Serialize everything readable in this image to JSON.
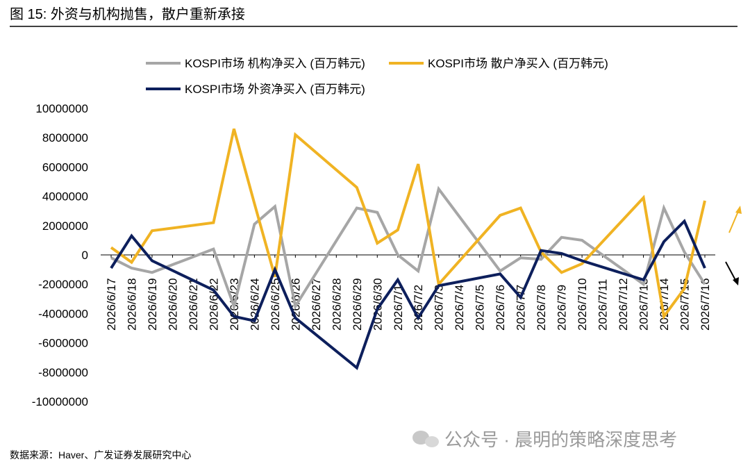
{
  "chart_data": {
    "type": "line",
    "title": "图 15: 外资与机构抛售，散户重新承接",
    "source": "数据来源：Haver、广发证券发展研究中心",
    "watermark": "公众号 · 晨明的策略深度思考",
    "x": [
      "2026/6/17",
      "2026/6/18",
      "2026/6/19",
      "2026/6/22",
      "2026/6/23",
      "2026/6/24",
      "2026/6/25",
      "2026/6/26",
      "2026/6/29",
      "2026/6/30",
      "2026/7/1",
      "2026/7/2",
      "2026/7/3",
      "2026/7/6",
      "2026/7/7",
      "2026/7/8",
      "2026/7/9",
      "2026/7/10",
      "2026/7/13",
      "2026/7/14",
      "2026/7/15",
      "2026/7/16"
    ],
    "xlim": [
      "2026/6/17",
      "2026/7/16"
    ],
    "xticks": [
      "2026/6/17",
      "2026/6/18",
      "2026/6/19",
      "2026/6/20",
      "2026/6/21",
      "2026/6/22",
      "2026/6/23",
      "2026/6/24",
      "2026/6/25",
      "2026/6/26",
      "2026/6/27",
      "2026/6/28",
      "2026/6/29",
      "2026/6/30",
      "2026/7/1",
      "2026/7/2",
      "2026/7/3",
      "2026/7/4",
      "2026/7/5",
      "2026/7/6",
      "2026/7/7",
      "2026/7/8",
      "2026/7/9",
      "2026/7/10",
      "2026/7/11",
      "2026/7/12",
      "2026/7/13",
      "2026/7/14",
      "2026/7/15",
      "2026/7/16"
    ],
    "ylim": [
      -10000000,
      10000000
    ],
    "yticks": [
      10000000,
      8000000,
      6000000,
      4000000,
      2000000,
      0,
      -2000000,
      -4000000,
      -6000000,
      -8000000,
      -10000000
    ],
    "series": [
      {
        "name": "KOSPI市场 机构净买入 (百万韩元)",
        "color": "#a6a6a6",
        "values": [
          -200000,
          -900000,
          -1200000,
          400000,
          -3500000,
          2100000,
          3300000,
          -3500000,
          3200000,
          2900000,
          0,
          -1100000,
          4500000,
          -1100000,
          -200000,
          -300000,
          1200000,
          1000000,
          -2000000,
          3200000,
          200000,
          -2000000
        ]
      },
      {
        "name": "KOSPI市场 散户净买入 (百万韩元)",
        "color": "#f0b323",
        "values": [
          500000,
          -500000,
          1650000,
          2200000,
          8600000,
          3500000,
          -1500000,
          8200000,
          4600000,
          800000,
          1700000,
          6200000,
          -2000000,
          2700000,
          3200000,
          200000,
          -1200000,
          -600000,
          3900000,
          -4200000,
          -2300000,
          3700000
        ]
      },
      {
        "name": "KOSPI市场 外资净买入 (百万韩元)",
        "color": "#0d1f5c",
        "values": [
          -900000,
          1300000,
          -400000,
          -2400000,
          -4200000,
          -4500000,
          -1000000,
          -4300000,
          -7700000,
          -3700000,
          -1700000,
          -4300000,
          -2100000,
          -1300000,
          -2900000,
          300000,
          100000,
          -400000,
          -1700000,
          900000,
          2300000,
          -900000
        ]
      }
    ]
  }
}
